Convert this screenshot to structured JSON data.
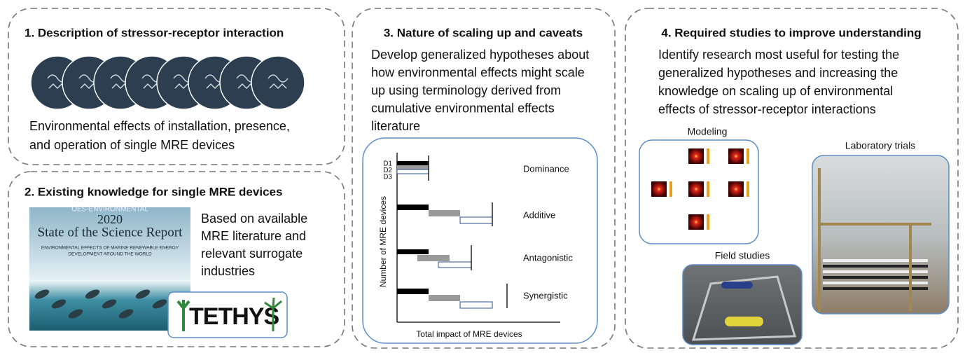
{
  "panels": [
    {
      "title": "1. Description of stressor-receptor interaction",
      "text_lines": [
        "Environmental effects of installation, presence,",
        "and operation of single MRE devices"
      ]
    },
    {
      "title": "2. Existing knowledge for single MRE devices",
      "report": {
        "org": "OES-ENVIRONMENTAL",
        "year": "2020",
        "title": "State of the Science Report",
        "subtitle_lines": [
          "ENVIRONMENTAL EFFECTS OF MARINE RENEWABLE ENERGY",
          "DEVELOPMENT AROUND THE WORLD"
        ]
      },
      "logo": "TETHYS",
      "text_lines": [
        "Based on available",
        "MRE literature and",
        "relevant surrogate",
        "industries"
      ]
    },
    {
      "title": "3. Nature of scaling up and caveats",
      "text_lines": [
        "Develop generalized hypotheses about",
        "how environmental effects might scale",
        "up using terminology derived from",
        "cumulative environmental effects",
        "literature"
      ],
      "diagram": {
        "y_axis_label": "Number of MRE devices",
        "x_axis_label": "Total impact of MRE devices",
        "device_labels": [
          "D1",
          "D2",
          "D3"
        ],
        "scenarios": [
          "Dominance",
          "Additive",
          "Antagonistic",
          "Synergistic"
        ]
      }
    },
    {
      "title": "4. Required studies to improve understanding",
      "text_lines": [
        "Identify research most useful for testing the",
        "generalized hypotheses and increasing the",
        "knowledge on scaling up of environmental",
        "effects of stressor-receptor interactions"
      ],
      "images": [
        {
          "label": "Modeling"
        },
        {
          "label": "Laboratory trials"
        },
        {
          "label": "Field studies"
        }
      ]
    }
  ]
}
